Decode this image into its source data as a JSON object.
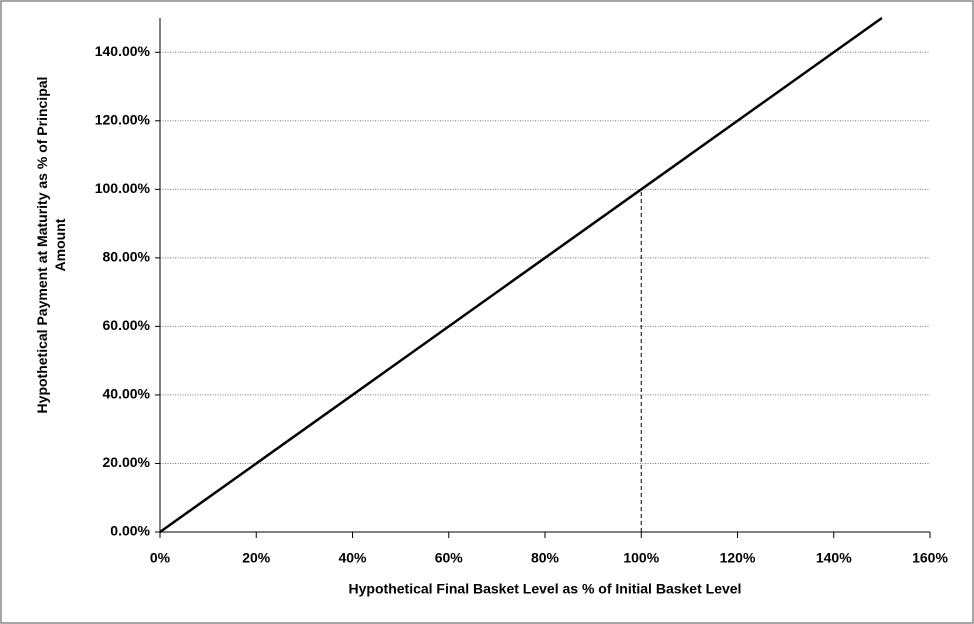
{
  "chart_data": {
    "type": "line",
    "x": [
      0,
      150
    ],
    "series": [
      {
        "color": "#000000",
        "values": [
          0,
          150
        ]
      }
    ],
    "xlim": [
      0,
      160
    ],
    "ylim": [
      0,
      150
    ],
    "xticks": [
      {
        "value": 0,
        "label": "0%"
      },
      {
        "value": 20,
        "label": "20%"
      },
      {
        "value": 40,
        "label": "40%"
      },
      {
        "value": 60,
        "label": "60%"
      },
      {
        "value": 80,
        "label": "80%"
      },
      {
        "value": 100,
        "label": "100%"
      },
      {
        "value": 120,
        "label": "120%"
      },
      {
        "value": 140,
        "label": "140%"
      },
      {
        "value": 160,
        "label": "160%"
      }
    ],
    "yticks": [
      {
        "value": 0,
        "label": "0.00%"
      },
      {
        "value": 20,
        "label": "20.00%"
      },
      {
        "value": 40,
        "label": "40.00%"
      },
      {
        "value": 60,
        "label": "60.00%"
      },
      {
        "value": 80,
        "label": "80.00%"
      },
      {
        "value": 100,
        "label": "100.00%"
      },
      {
        "value": 120,
        "label": "120.00%"
      },
      {
        "value": 140,
        "label": "140.00%"
      }
    ],
    "x_label": "Hypothetical Final Basket Level as % of Initial Basket Level",
    "y_label_lines": [
      "Hypothetical Payment  at Maturity  as % of Principal",
      "Amount"
    ],
    "grid": true,
    "reference_line": {
      "x": 100,
      "y": 100
    }
  }
}
